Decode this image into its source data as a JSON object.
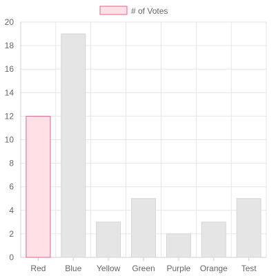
{
  "chart_data": {
    "type": "bar",
    "categories": [
      "Red",
      "Blue",
      "Yellow",
      "Green",
      "Purple",
      "Orange",
      "Test"
    ],
    "series": [
      {
        "name": "# of Votes",
        "values": [
          12,
          19,
          3,
          5,
          2,
          3,
          5
        ]
      }
    ],
    "ylim": [
      0,
      20
    ],
    "yticks": [
      0,
      2,
      4,
      6,
      8,
      10,
      12,
      14,
      16,
      18,
      20
    ],
    "grid": true,
    "legend": "top-center",
    "colors": {
      "legend_fill": "#ffe0e6",
      "legend_stroke": "#e2638a",
      "highlight_fill": "#ffe0e6",
      "highlight_stroke": "#e2638a",
      "bar_fill": "#e5e5e5",
      "bar_stroke": "#d6d6d6",
      "grid": "#e6e6e6",
      "axis": "#cfcfcf",
      "text": "#666666"
    }
  }
}
